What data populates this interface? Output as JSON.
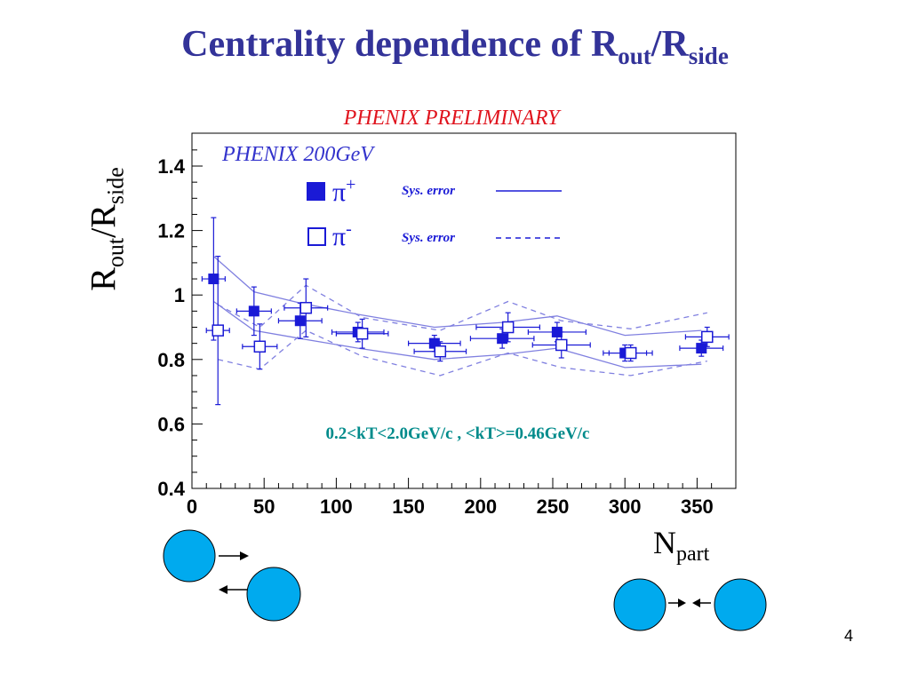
{
  "slide": {
    "title_main": "Centrality dependence of R",
    "title_sub1": "out",
    "title_slash": "/R",
    "title_sub2": "side",
    "page_number": "4"
  },
  "chart_data": {
    "type": "scatter",
    "banner": "PHENIX PRELIMINARY",
    "inner_title": "PHENIX 200GeV",
    "annotation": "0.2<kT<2.0GeV/c ,   <kT>=0.46GeV/c",
    "ylabel_main": "R",
    "ylabel_sub1": "out",
    "ylabel_slash": "/R",
    "ylabel_sub2": "side",
    "xlabel_main": "N",
    "xlabel_sub": "part",
    "xlim": [
      0,
      370
    ],
    "ylim": [
      0.4,
      1.5
    ],
    "xticks": [
      0,
      50,
      100,
      150,
      200,
      250,
      300,
      350
    ],
    "xtick_labels": [
      "0",
      "50",
      "100",
      "150",
      "200",
      "250",
      "300",
      "350"
    ],
    "yticks": [
      0.4,
      0.6,
      0.8,
      1.0,
      1.2,
      1.4
    ],
    "ytick_labels": [
      "0.4",
      "0.6",
      "0.8",
      "1",
      "1.2",
      "1.4"
    ],
    "grid": false,
    "legend_position": "top-center",
    "colors": {
      "title": "#333399",
      "series": "#1a1ad6",
      "band": "#8080e0",
      "banner": "#e0141e",
      "annotation": "#008b8b",
      "circle_fill": "#00aaee"
    },
    "series": [
      {
        "name": "π+",
        "legend_symbol": "π",
        "legend_sup": "+",
        "marker": "filled-square",
        "x": [
          15,
          43,
          75,
          115,
          168,
          215,
          253,
          300,
          353
        ],
        "y": [
          1.05,
          0.95,
          0.92,
          0.885,
          0.85,
          0.865,
          0.885,
          0.82,
          0.835
        ],
        "x_err": [
          8,
          12,
          15,
          18,
          18,
          22,
          20,
          15,
          15
        ],
        "y_err": [
          0.19,
          0.075,
          0.055,
          0.03,
          0.025,
          0.03,
          0.03,
          0.025,
          0.025
        ],
        "syserr_label": "Sys. error",
        "syserr_style": "solid",
        "sys_upper": [
          [
            15,
            1.12
          ],
          [
            43,
            1.01
          ],
          [
            75,
            0.975
          ],
          [
            115,
            0.94
          ],
          [
            168,
            0.9
          ],
          [
            215,
            0.915
          ],
          [
            253,
            0.935
          ],
          [
            300,
            0.875
          ],
          [
            353,
            0.89
          ]
        ],
        "sys_lower": [
          [
            15,
            0.98
          ],
          [
            43,
            0.89
          ],
          [
            75,
            0.865
          ],
          [
            115,
            0.835
          ],
          [
            168,
            0.8
          ],
          [
            215,
            0.815
          ],
          [
            253,
            0.835
          ],
          [
            300,
            0.775
          ],
          [
            353,
            0.785
          ]
        ]
      },
      {
        "name": "π-",
        "legend_symbol": "π",
        "legend_sup": "-",
        "marker": "open-square",
        "x": [
          18,
          47,
          79,
          118,
          172,
          219,
          256,
          304,
          357
        ],
        "y": [
          0.89,
          0.84,
          0.96,
          0.88,
          0.825,
          0.9,
          0.845,
          0.82,
          0.87
        ],
        "x_err": [
          8,
          12,
          15,
          18,
          18,
          22,
          20,
          15,
          15
        ],
        "y_err": [
          0.23,
          0.07,
          0.09,
          0.045,
          0.03,
          0.045,
          0.04,
          0.025,
          0.03
        ],
        "syserr_label": "Sys. error",
        "syserr_style": "dashed",
        "sys_upper": [
          [
            18,
            0.97
          ],
          [
            47,
            0.9
          ],
          [
            79,
            1.03
          ],
          [
            118,
            0.93
          ],
          [
            172,
            0.89
          ],
          [
            219,
            0.98
          ],
          [
            256,
            0.92
          ],
          [
            304,
            0.895
          ],
          [
            357,
            0.945
          ]
        ],
        "sys_lower": [
          [
            18,
            0.8
          ],
          [
            47,
            0.77
          ],
          [
            79,
            0.89
          ],
          [
            118,
            0.81
          ],
          [
            172,
            0.75
          ],
          [
            219,
            0.82
          ],
          [
            256,
            0.775
          ],
          [
            304,
            0.75
          ],
          [
            357,
            0.795
          ]
        ]
      }
    ]
  }
}
